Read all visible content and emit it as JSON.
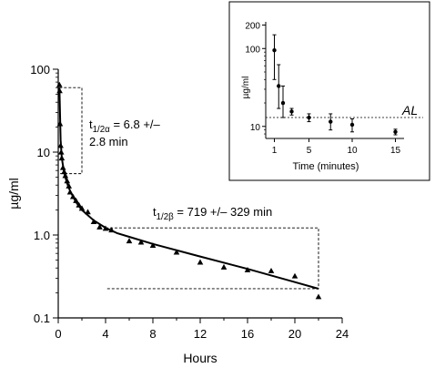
{
  "chart_data": [
    {
      "type": "scatter",
      "title": "",
      "xlabel": "Hours",
      "ylabel": "µg/ml",
      "xlim": [
        0,
        24
      ],
      "ylim": [
        0.1,
        100
      ],
      "yscale": "log",
      "xticks": [
        "0",
        "4",
        "8",
        "12",
        "16",
        "20",
        "24"
      ],
      "yticks": [
        "0.1",
        "1.0",
        "10",
        "100"
      ],
      "grid": false,
      "legend": "none",
      "annotations": [
        {
          "lines": [
            "t1/2α = 6.8 +/–",
            "2.8 min"
          ],
          "base": "t",
          "sub": "1/2α",
          "rest": " = 6.8 +/–",
          "line2": "2.8 min"
        },
        {
          "base": "t",
          "sub": "1/2β",
          "rest": " = 719 +/– 329 min"
        }
      ],
      "series": [
        {
          "marker": "triangle",
          "points": [
            {
              "x": 0.1,
              "y": 65
            },
            {
              "x": 0.12,
              "y": 55
            },
            {
              "x": 0.15,
              "y": 22
            },
            {
              "x": 0.2,
              "y": 12
            },
            {
              "x": 0.25,
              "y": 10
            },
            {
              "x": 0.3,
              "y": 8.5
            },
            {
              "x": 0.4,
              "y": 6.5
            },
            {
              "x": 0.5,
              "y": 5.8
            },
            {
              "x": 0.6,
              "y": 5.2
            },
            {
              "x": 0.75,
              "y": 4.5
            },
            {
              "x": 0.9,
              "y": 3.9
            },
            {
              "x": 1.0,
              "y": 3.3
            },
            {
              "x": 1.25,
              "y": 2.9
            },
            {
              "x": 1.5,
              "y": 2.6
            },
            {
              "x": 1.75,
              "y": 2.3
            },
            {
              "x": 2.0,
              "y": 2.1
            },
            {
              "x": 2.5,
              "y": 1.9
            },
            {
              "x": 3.0,
              "y": 1.45
            },
            {
              "x": 3.5,
              "y": 1.25
            },
            {
              "x": 4.0,
              "y": 1.2
            },
            {
              "x": 4.5,
              "y": 1.15
            },
            {
              "x": 6.0,
              "y": 0.85
            },
            {
              "x": 7.0,
              "y": 0.82
            },
            {
              "x": 8.0,
              "y": 0.75
            },
            {
              "x": 10.0,
              "y": 0.62
            },
            {
              "x": 12.0,
              "y": 0.47
            },
            {
              "x": 14.0,
              "y": 0.41
            },
            {
              "x": 16.0,
              "y": 0.38
            },
            {
              "x": 18.0,
              "y": 0.37
            },
            {
              "x": 20.0,
              "y": 0.32
            },
            {
              "x": 22.0,
              "y": 0.18
            }
          ]
        },
        {
          "name": "",
          "type": "line",
          "points": [
            {
              "x": 0.1,
              "y": 60
            },
            {
              "x": 0.2,
              "y": 14
            },
            {
              "x": 0.3,
              "y": 8.5
            },
            {
              "x": 0.5,
              "y": 5.6
            },
            {
              "x": 0.75,
              "y": 4.2
            },
            {
              "x": 1.0,
              "y": 3.4
            },
            {
              "x": 1.5,
              "y": 2.5
            },
            {
              "x": 2.0,
              "y": 2.0
            },
            {
              "x": 3.0,
              "y": 1.5
            },
            {
              "x": 4.0,
              "y": 1.22
            },
            {
              "x": 5.0,
              "y": 1.05
            },
            {
              "x": 6.0,
              "y": 0.95
            },
            {
              "x": 8.0,
              "y": 0.78
            },
            {
              "x": 12.0,
              "y": 0.55
            },
            {
              "x": 16.0,
              "y": 0.39
            },
            {
              "x": 20.0,
              "y": 0.27
            },
            {
              "x": 22.0,
              "y": 0.225
            }
          ]
        }
      ],
      "reference_boxes": [
        {
          "x0": 0.1,
          "x1": 2.0,
          "y_top": 60,
          "y_bottom": 5.5
        },
        {
          "x0": 4.0,
          "x1": 22.0,
          "y_top": 1.22,
          "y_bottom": 0.225
        }
      ]
    },
    {
      "type": "scatter",
      "title": "",
      "xlabel": "Time (minutes)",
      "ylabel": "µg/ml",
      "xlim": [
        0,
        16
      ],
      "ylim": [
        7,
        220
      ],
      "yscale": "log",
      "xticks": [
        "1",
        "5",
        "10",
        "15"
      ],
      "yticks": [
        "10",
        "100",
        "200"
      ],
      "grid": false,
      "legend": "none",
      "reference_line": {
        "label": "AL",
        "y": 13
      },
      "series": [
        {
          "marker": "dot",
          "error_bars": true,
          "points": [
            {
              "x": 1,
              "y": 95,
              "lo": 40,
              "hi": 150
            },
            {
              "x": 1.5,
              "y": 33,
              "lo": 17,
              "hi": 62
            },
            {
              "x": 2,
              "y": 20,
              "lo": 13,
              "hi": 33
            },
            {
              "x": 3,
              "y": 15.5,
              "lo": 14,
              "hi": 17
            },
            {
              "x": 5,
              "y": 13,
              "lo": 11.5,
              "hi": 14.5
            },
            {
              "x": 7.5,
              "y": 11.5,
              "lo": 9,
              "hi": 14.5
            },
            {
              "x": 10,
              "y": 10.5,
              "lo": 8.5,
              "hi": 12.5
            },
            {
              "x": 15,
              "y": 8.5,
              "lo": 7.8,
              "hi": 9.2
            }
          ]
        }
      ]
    }
  ]
}
